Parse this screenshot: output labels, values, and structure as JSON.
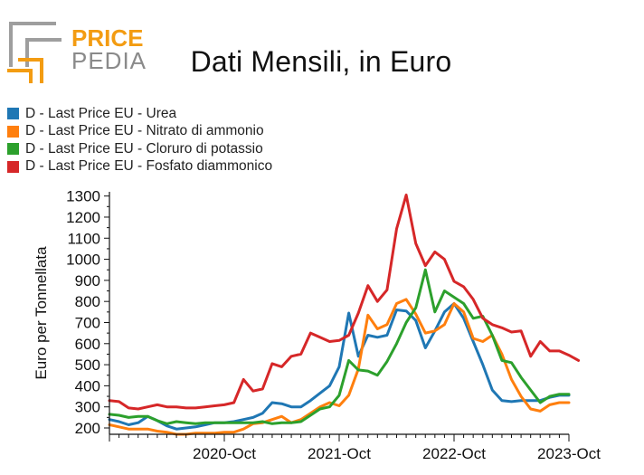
{
  "brand": {
    "line1": "PRICE",
    "line2": "PEDIA"
  },
  "chart_data": {
    "type": "line",
    "title": "Dati Mensili, in Euro",
    "ylabel": "Euro per Tonnellata",
    "xlabel": "",
    "ylim": [
      170,
      1320
    ],
    "yticks": [
      200,
      300,
      400,
      500,
      600,
      700,
      800,
      900,
      1000,
      1100,
      1200,
      1300
    ],
    "x_start_label": "2019-Oct",
    "x_tick_labels": [
      "2020-Oct",
      "2021-Oct",
      "2022-Oct",
      "2023-Oct"
    ],
    "legend_position": "top-left",
    "grid": false,
    "series": [
      {
        "name": "D - Last Price EU - Urea",
        "color": "#1f77b4",
        "values": [
          240,
          230,
          215,
          225,
          255,
          235,
          210,
          195,
          200,
          205,
          215,
          225,
          225,
          230,
          240,
          250,
          270,
          320,
          315,
          300,
          300,
          330,
          365,
          400,
          490,
          745,
          540,
          640,
          630,
          640,
          760,
          755,
          710,
          580,
          660,
          750,
          790,
          720,
          610,
          500,
          380,
          330,
          325,
          330,
          330,
          330,
          345,
          355,
          355
        ]
      },
      {
        "name": "D - Last Price EU - Nitrato di ammonio",
        "color": "#ff7f0e",
        "values": [
          215,
          205,
          195,
          195,
          195,
          185,
          180,
          170,
          170,
          175,
          175,
          175,
          180,
          180,
          195,
          220,
          225,
          240,
          255,
          225,
          240,
          270,
          300,
          320,
          305,
          355,
          480,
          735,
          670,
          690,
          790,
          810,
          740,
          650,
          660,
          690,
          790,
          750,
          625,
          610,
          640,
          550,
          430,
          350,
          290,
          280,
          310,
          320,
          320
        ]
      },
      {
        "name": "D - Last Price EU - Cloruro di potassio",
        "color": "#2ca02c",
        "values": [
          265,
          260,
          250,
          255,
          255,
          235,
          220,
          230,
          225,
          220,
          225,
          225,
          225,
          225,
          225,
          225,
          230,
          220,
          225,
          225,
          230,
          260,
          290,
          300,
          355,
          520,
          475,
          470,
          450,
          515,
          600,
          700,
          770,
          950,
          750,
          850,
          820,
          790,
          720,
          730,
          640,
          520,
          510,
          440,
          380,
          320,
          350,
          360,
          360
        ]
      },
      {
        "name": "D - Last Price EU - Fosfato diammonico",
        "color": "#d62728",
        "values": [
          330,
          325,
          295,
          290,
          300,
          310,
          300,
          300,
          295,
          295,
          300,
          305,
          310,
          320,
          430,
          375,
          385,
          505,
          490,
          540,
          550,
          650,
          630,
          610,
          615,
          640,
          745,
          875,
          800,
          855,
          1145,
          1305,
          1075,
          970,
          1035,
          1000,
          895,
          870,
          810,
          720,
          690,
          675,
          655,
          660,
          540,
          610,
          565,
          565,
          545,
          520
        ]
      }
    ]
  }
}
